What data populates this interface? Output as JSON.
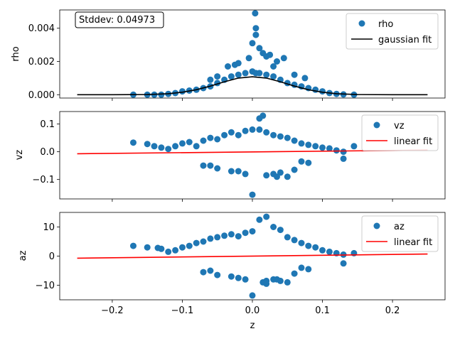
{
  "chart_data": [
    {
      "type": "scatter",
      "ylabel": "rho",
      "xlim": [
        -0.275,
        0.275
      ],
      "ylim": [
        -0.0002,
        0.0051
      ],
      "yticks": [
        "0.000",
        "0.002",
        "0.004"
      ],
      "ytick_values": [
        0,
        0.002,
        0.004
      ],
      "annotation": "Stddev: 0.04973",
      "legend_position": "upper right",
      "series": [
        {
          "name": "rho",
          "kind": "scatter",
          "color": "#1f77b4",
          "x": [
            -0.17,
            -0.15,
            -0.14,
            -0.13,
            -0.12,
            -0.11,
            -0.1,
            -0.09,
            -0.08,
            -0.07,
            -0.06,
            -0.05,
            -0.04,
            -0.03,
            -0.02,
            -0.01,
            0.0,
            0.005,
            0.01,
            0.02,
            0.03,
            0.04,
            0.05,
            0.06,
            0.07,
            0.08,
            0.09,
            0.1,
            0.11,
            0.12,
            0.13,
            0.145,
            -0.035,
            -0.02,
            -0.005,
            0.0,
            0.005,
            0.01,
            0.015,
            0.02,
            0.025,
            0.035,
            0.045,
            -0.06,
            -0.05,
            -0.025,
            0.03,
            0.06,
            0.075,
            0.004,
            0.005
          ],
          "y": [
            0.0,
            0.0,
            0.0,
            0.0,
            5e-05,
            0.0001,
            0.0002,
            0.00025,
            0.0003,
            0.0004,
            0.0005,
            0.0007,
            0.0009,
            0.0011,
            0.0012,
            0.0013,
            0.0014,
            0.0013,
            0.0013,
            0.0012,
            0.0011,
            0.0009,
            0.0007,
            0.0006,
            0.0005,
            0.0004,
            0.0003,
            0.0002,
            0.0001,
            5e-05,
            2e-05,
            0.0,
            0.0017,
            0.0019,
            0.0022,
            0.0031,
            0.0036,
            0.0028,
            0.0025,
            0.0023,
            0.0024,
            0.002,
            0.0022,
            0.0009,
            0.0011,
            0.0018,
            0.0017,
            0.0012,
            0.001,
            0.0049,
            0.004
          ]
        },
        {
          "name": "gaussian fit",
          "kind": "line",
          "color": "#000000",
          "x": [
            -0.25,
            -0.2,
            -0.15,
            -0.12,
            -0.1,
            -0.08,
            -0.06,
            -0.04,
            -0.02,
            0.0,
            0.02,
            0.04,
            0.06,
            0.08,
            0.1,
            0.12,
            0.15,
            0.2,
            0.25
          ],
          "y": [
            0.0,
            0.0,
            1e-05,
            6e-05,
            0.00015,
            0.0003,
            0.00052,
            0.00078,
            0.001,
            0.00108,
            0.001,
            0.00078,
            0.00052,
            0.0003,
            0.00015,
            6e-05,
            1e-05,
            0.0,
            0.0
          ]
        }
      ]
    },
    {
      "type": "scatter",
      "ylabel": "vz",
      "xlim": [
        -0.275,
        0.275
      ],
      "ylim": [
        -0.17,
        0.145
      ],
      "yticks": [
        "−0.1",
        "0.0",
        "0.1"
      ],
      "ytick_values": [
        -0.1,
        0.0,
        0.1
      ],
      "legend_position": "upper right",
      "series": [
        {
          "name": "vz",
          "kind": "scatter",
          "color": "#1f77b4",
          "x": [
            -0.17,
            -0.15,
            -0.14,
            -0.13,
            -0.12,
            -0.11,
            -0.1,
            -0.09,
            -0.08,
            -0.07,
            -0.06,
            -0.05,
            -0.04,
            -0.03,
            -0.02,
            -0.01,
            0.0,
            0.01,
            0.02,
            0.03,
            0.04,
            0.05,
            0.06,
            0.07,
            0.08,
            0.09,
            0.1,
            0.11,
            0.12,
            0.13,
            0.145,
            0.0,
            0.01,
            0.015,
            -0.02,
            0.03,
            0.05,
            -0.05,
            -0.03,
            0.06,
            0.04,
            -0.07,
            0.08,
            0.02,
            -0.01,
            0.035,
            -0.06,
            0.07,
            0.13
          ],
          "y": [
            0.033,
            0.028,
            0.02,
            0.015,
            0.01,
            0.02,
            0.03,
            0.035,
            0.02,
            0.04,
            0.05,
            0.045,
            0.06,
            0.07,
            0.06,
            0.075,
            0.08,
            0.08,
            0.07,
            0.06,
            0.055,
            0.05,
            0.04,
            0.03,
            0.025,
            0.02,
            0.015,
            0.012,
            0.005,
            0.0,
            0.02,
            -0.155,
            0.12,
            0.13,
            -0.07,
            -0.08,
            -0.09,
            -0.06,
            -0.07,
            -0.065,
            -0.075,
            -0.05,
            -0.04,
            -0.085,
            -0.08,
            -0.09,
            -0.05,
            -0.035,
            -0.025
          ]
        },
        {
          "name": "linear fit",
          "kind": "line",
          "color": "#ff0000",
          "x": [
            -0.25,
            0.25
          ],
          "y": [
            -0.007,
            0.006
          ]
        }
      ]
    },
    {
      "type": "scatter",
      "ylabel": "az",
      "xlabel": "z",
      "xlim": [
        -0.275,
        0.275
      ],
      "ylim": [
        -15,
        15
      ],
      "yticks": [
        "−10",
        "0",
        "10"
      ],
      "ytick_values": [
        -10,
        0,
        10
      ],
      "xticks": [
        "−0.2",
        "−0.1",
        "0.0",
        "0.1",
        "0.2"
      ],
      "xtick_values": [
        -0.2,
        -0.1,
        0.0,
        0.1,
        0.2
      ],
      "legend_position": "upper right",
      "series": [
        {
          "name": "az",
          "kind": "scatter",
          "color": "#1f77b4",
          "x": [
            -0.17,
            -0.15,
            -0.135,
            -0.13,
            -0.12,
            -0.11,
            -0.1,
            -0.09,
            -0.08,
            -0.07,
            -0.06,
            -0.05,
            -0.04,
            -0.03,
            -0.02,
            -0.01,
            0.0,
            0.01,
            0.02,
            0.03,
            0.04,
            0.05,
            0.06,
            0.07,
            0.08,
            0.09,
            0.1,
            0.11,
            0.12,
            0.13,
            0.145,
            0.0,
            0.015,
            0.02,
            -0.02,
            0.03,
            0.05,
            -0.05,
            -0.03,
            0.06,
            0.04,
            -0.07,
            0.08,
            0.02,
            -0.01,
            0.035,
            -0.06,
            0.07,
            0.13
          ],
          "y": [
            3.5,
            3.0,
            2.8,
            2.5,
            1.5,
            2.0,
            3.0,
            3.5,
            4.5,
            5.0,
            6.0,
            6.5,
            7.0,
            7.5,
            6.8,
            8.0,
            8.5,
            12.5,
            13.5,
            10.0,
            9.0,
            6.5,
            5.5,
            4.5,
            3.5,
            3.0,
            2.0,
            1.5,
            1.0,
            0.5,
            1.0,
            -13.5,
            -9.0,
            -8.5,
            -7.5,
            -8.0,
            -9.0,
            -6.5,
            -7.0,
            -6.0,
            -8.5,
            -5.5,
            -4.5,
            -9.5,
            -8.0,
            -8.0,
            -5.0,
            -4.0,
            -2.5
          ]
        },
        {
          "name": "linear fit",
          "kind": "line",
          "color": "#ff0000",
          "x": [
            -0.25,
            0.25
          ],
          "y": [
            -0.7,
            0.7
          ]
        }
      ]
    }
  ]
}
